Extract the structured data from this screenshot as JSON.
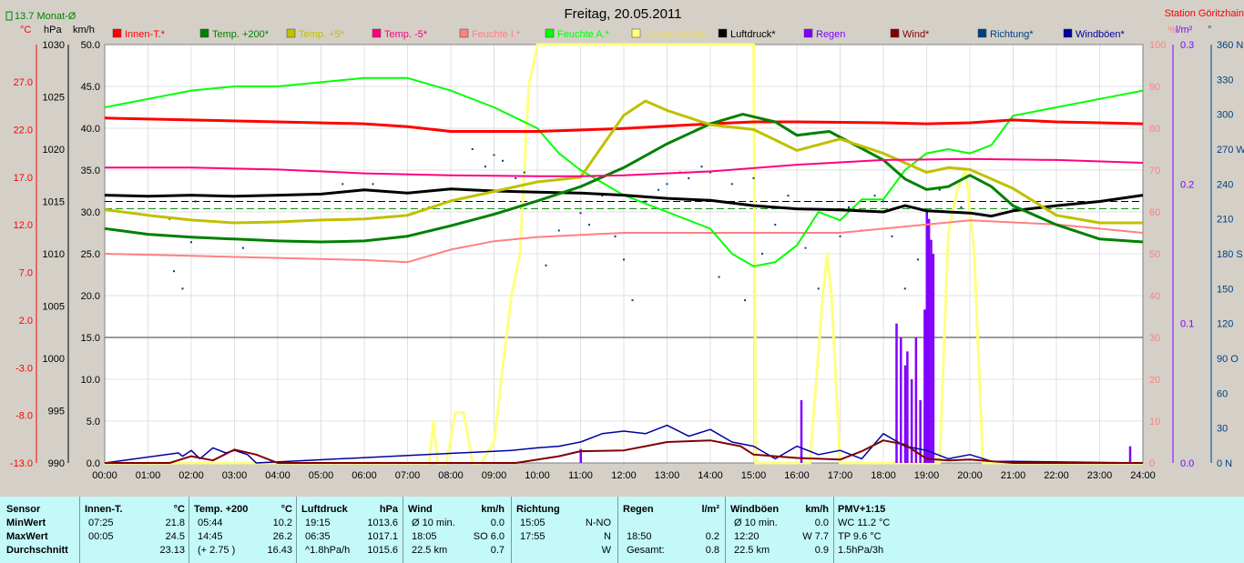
{
  "title": "Freitag, 20.05.2011",
  "station": "Station Göritzhain",
  "month_avg_label": "13.7 Monat-Ø",
  "units": {
    "temp": "°C",
    "pressure": "hPa",
    "wind": "km/h",
    "humidity": "%",
    "rain": "l/m²",
    "direction": "°"
  },
  "colors": {
    "innen": "#ff0000",
    "temp200": "#008000",
    "temp5": "#c0c000",
    "tempm5": "#ff0080",
    "feuchte_i": "#ff8080",
    "feuchte_a": "#00ff00",
    "sonne": "#ffff80",
    "luftdruck": "#000000",
    "regen": "#8000ff",
    "wind": "#800000",
    "richtung": "#004080",
    "windboen": "#0000a0"
  },
  "chart_data": {
    "type": "line",
    "x_label_times": [
      "00:00",
      "01:00",
      "02:00",
      "03:00",
      "04:00",
      "05:00",
      "06:00",
      "07:00",
      "08:00",
      "09:00",
      "10:00",
      "11:00",
      "12:00",
      "13:00",
      "14:00",
      "15:00",
      "16:00",
      "17:00",
      "18:00",
      "19:00",
      "20:00",
      "21:00",
      "22:00",
      "23:00",
      "24:00"
    ],
    "axes": {
      "temp_c": [
        "27.0",
        "22.0",
        "17.0",
        "12.0",
        "7.0",
        "2.0",
        "-3.0",
        "-8.0",
        "-13.0"
      ],
      "hpa": [
        "1030",
        "1025",
        "1020",
        "1015",
        "1010",
        "1005",
        "1000",
        "995",
        "990"
      ],
      "kmh": [
        "50.0",
        "45.0",
        "40.0",
        "35.0",
        "30.0",
        "25.0",
        "20.0",
        "15.0",
        "10.0",
        "5.0",
        "0.0"
      ],
      "percent": [
        "100",
        "90",
        "80",
        "70",
        "60",
        "50",
        "40",
        "30",
        "20",
        "10",
        "0"
      ],
      "rain": [
        "0.3",
        "0.2",
        "0.1",
        "0.0"
      ],
      "direction": [
        "360 N",
        "330",
        "300",
        "270 W",
        "240",
        "210",
        "180 S",
        "150",
        "120",
        "90 O",
        "60",
        "30",
        "0 N"
      ]
    },
    "legend": [
      {
        "key": "innen",
        "label": "Innen-T.*"
      },
      {
        "key": "temp200",
        "label": "Temp. +200*"
      },
      {
        "key": "temp5",
        "label": "Temp. +5*"
      },
      {
        "key": "tempm5",
        "label": "Temp. -5*"
      },
      {
        "key": "feuchte_i",
        "label": "Feuchte I.*"
      },
      {
        "key": "feuchte_a",
        "label": "Feuchte A.*"
      },
      {
        "key": "sonne",
        "label": "Sonnenschein"
      },
      {
        "key": "luftdruck",
        "label": "Luftdruck*"
      },
      {
        "key": "regen",
        "label": "Regen"
      },
      {
        "key": "wind",
        "label": "Wind*"
      },
      {
        "key": "richtung",
        "label": "Richtung*"
      },
      {
        "key": "windboen",
        "label": "Windböen*"
      }
    ],
    "series": [
      {
        "key": "innen",
        "axis": "temp",
        "hours": [
          0,
          2,
          4,
          6,
          7,
          8,
          10,
          12,
          14,
          15,
          16,
          18,
          19,
          20,
          21,
          22,
          23,
          24
        ],
        "values": [
          23.2,
          23.0,
          22.8,
          22.6,
          22.3,
          21.8,
          21.8,
          22.1,
          22.6,
          22.8,
          22.8,
          22.7,
          22.6,
          22.7,
          23.0,
          22.8,
          22.7,
          22.6
        ]
      },
      {
        "key": "temp200",
        "axis": "temp",
        "hours": [
          0,
          1,
          2,
          3,
          4,
          5,
          6,
          7,
          8,
          9,
          10,
          11,
          12,
          13,
          14,
          14.75,
          15.5,
          16,
          16.75,
          17.5,
          18,
          18.5,
          19,
          19.5,
          20,
          20.5,
          21,
          22,
          23,
          24
        ],
        "values": [
          11.6,
          11.0,
          10.7,
          10.5,
          10.3,
          10.2,
          10.3,
          10.8,
          11.9,
          13.1,
          14.5,
          16.0,
          18.0,
          20.5,
          22.6,
          23.6,
          22.8,
          21.4,
          21.8,
          20.0,
          18.8,
          16.8,
          15.7,
          16.0,
          17.2,
          16.0,
          14.0,
          12.0,
          10.5,
          10.2
        ]
      },
      {
        "key": "temp5",
        "axis": "temp",
        "hours": [
          0,
          1,
          2,
          3,
          4,
          5,
          6,
          7,
          8,
          9,
          10,
          11,
          12,
          12.5,
          13,
          14,
          15,
          16,
          17,
          18,
          19,
          19.5,
          20,
          21,
          22,
          23,
          24
        ],
        "values": [
          13.6,
          13.0,
          12.5,
          12.2,
          12.3,
          12.5,
          12.6,
          13.0,
          14.5,
          15.5,
          16.5,
          17.0,
          23.5,
          25.0,
          24.0,
          22.5,
          22.0,
          19.8,
          21.0,
          19.5,
          17.5,
          18.0,
          17.8,
          15.8,
          13.0,
          12.2,
          12.2
        ]
      },
      {
        "key": "tempm5",
        "axis": "temp",
        "hours": [
          0,
          2,
          4,
          6,
          8,
          10,
          11,
          12,
          14,
          16,
          18,
          20,
          22,
          24
        ],
        "values": [
          18.0,
          18.0,
          17.8,
          17.4,
          17.2,
          17.1,
          17.1,
          17.2,
          17.6,
          18.3,
          18.8,
          18.9,
          18.8,
          18.5
        ]
      }
    ],
    "humidity": [
      {
        "key": "feuchte_i",
        "hours": [
          0,
          2,
          4,
          6,
          7,
          8,
          9,
          10,
          12,
          15,
          17,
          18,
          20,
          22,
          24
        ],
        "values": [
          50,
          49.5,
          49,
          48.5,
          48,
          51,
          53,
          54,
          55,
          55,
          55,
          56,
          58,
          57,
          55
        ]
      },
      {
        "key": "feuchte_a",
        "hours": [
          0,
          1,
          2,
          3,
          4,
          5,
          6,
          7,
          8,
          9,
          10,
          10.5,
          11,
          12,
          13,
          14,
          14.5,
          15,
          15.5,
          16,
          16.5,
          17,
          17.5,
          18,
          18.5,
          19,
          19.5,
          20,
          20.5,
          21,
          22,
          23,
          24
        ],
        "values": [
          85,
          87,
          89,
          90,
          90,
          91,
          92,
          92,
          89,
          85,
          80,
          74,
          70,
          64,
          60,
          56,
          50,
          47,
          48,
          52,
          60,
          58,
          63,
          63,
          70,
          74,
          75,
          74,
          76,
          83,
          85,
          87,
          89
        ]
      }
    ],
    "pressure": {
      "hours": [
        0,
        1,
        2,
        3,
        4,
        5,
        6,
        7,
        8,
        9,
        10,
        11,
        12,
        13,
        14,
        15,
        16,
        17,
        18,
        18.5,
        19,
        20,
        20.5,
        21,
        22,
        23,
        24
      ],
      "values": [
        1015.6,
        1015.5,
        1015.6,
        1015.5,
        1015.6,
        1015.7,
        1016.1,
        1015.8,
        1016.2,
        1016.0,
        1015.9,
        1015.8,
        1015.6,
        1015.3,
        1015.1,
        1014.6,
        1014.3,
        1014.2,
        1014.0,
        1014.6,
        1014.1,
        1013.9,
        1013.6,
        1014.1,
        1014.6,
        1015.0,
        1015.6
      ]
    },
    "sunshine": {
      "hours": [
        0,
        7.5,
        7.6,
        7.7,
        7.9,
        8.1,
        8.3,
        8.5,
        8.7,
        9.0,
        9.4,
        9.6,
        9.8,
        10.0,
        10.1,
        15.0,
        15.05,
        15.5,
        16.3,
        16.6,
        16.7,
        16.8,
        17.0,
        17.2,
        17.3,
        19.3,
        19.5,
        19.7,
        19.9,
        20.1,
        20.3,
        24
      ],
      "values": [
        0,
        0,
        10,
        0,
        0,
        12,
        12,
        0,
        0,
        5,
        40,
        50,
        90,
        100,
        100,
        100,
        0,
        0,
        0,
        40,
        50,
        40,
        0,
        0,
        0,
        0,
        55,
        65,
        70,
        50,
        0,
        0
      ]
    },
    "wind": {
      "hours": [
        0,
        1.5,
        2.0,
        2.5,
        3.0,
        3.5,
        4.0,
        9.5,
        10.5,
        11.0,
        12.0,
        12.5,
        13.0,
        14.0,
        14.7,
        15.0,
        16.0,
        17.0,
        17.5,
        18.0,
        18.5,
        19.0,
        19.5,
        20.0,
        21.0,
        24.0
      ],
      "values": [
        0,
        0,
        0.8,
        0.3,
        1.6,
        1.0,
        0,
        0,
        0.8,
        1.4,
        1.5,
        2.0,
        2.5,
        2.7,
        2.0,
        1.0,
        0.6,
        0.4,
        1.4,
        2.7,
        2.2,
        0.5,
        0.3,
        0.4,
        0,
        0
      ]
    },
    "windboen": {
      "hours": [
        0,
        1.7,
        1.8,
        2.0,
        2.2,
        2.5,
        2.8,
        3.0,
        3.3,
        3.5,
        9.4,
        10.0,
        10.5,
        11.0,
        11.5,
        12.0,
        12.5,
        13.0,
        13.5,
        14.0,
        14.5,
        15.0,
        15.5,
        16.0,
        16.5,
        17.0,
        17.5,
        18.0,
        18.5,
        19.0,
        19.5,
        20.0,
        20.5,
        21.0,
        24.0
      ],
      "values": [
        0,
        1.2,
        0.8,
        1.5,
        0.5,
        1.8,
        1.2,
        1.5,
        1.0,
        0,
        1.5,
        1.8,
        2.0,
        2.5,
        3.5,
        3.8,
        3.5,
        4.5,
        3.2,
        4.0,
        2.5,
        2.0,
        0.5,
        2.0,
        1.0,
        1.5,
        0.5,
        3.5,
        2.0,
        1.5,
        0.5,
        1.0,
        0.2,
        0.2,
        0
      ]
    },
    "rain": {
      "hours": [
        11.0,
        16.1,
        18.3,
        18.4,
        18.5,
        18.55,
        18.65,
        18.75,
        18.85,
        18.95,
        19.0,
        19.05,
        19.1,
        19.15,
        23.7
      ],
      "values": [
        0.01,
        0.045,
        0.1,
        0.09,
        0.07,
        0.08,
        0.06,
        0.09,
        0.045,
        0.11,
        0.18,
        0.175,
        0.16,
        0.15,
        0.012
      ]
    },
    "direction_dots": {
      "hours": [
        1.5,
        1.6,
        1.8,
        2.0,
        2.1,
        2.6,
        3.2,
        5.5,
        6.2,
        7.5,
        8.5,
        8.8,
        9.0,
        9.2,
        9.5,
        9.7,
        10.0,
        10.2,
        10.5,
        11.0,
        11.2,
        11.5,
        11.8,
        12.0,
        12.2,
        12.5,
        12.8,
        13.0,
        13.3,
        13.5,
        13.8,
        14.0,
        14.2,
        14.5,
        14.8,
        15.0,
        15.2,
        15.5,
        15.8,
        16.2,
        16.5,
        17.0,
        17.2,
        17.5,
        17.8,
        18.0,
        18.2,
        18.5,
        18.8,
        19.0,
        19.3,
        19.6,
        19.8
      ],
      "values": [
        210,
        165,
        150,
        190,
        225,
        230,
        185,
        240,
        240,
        220,
        270,
        255,
        265,
        260,
        245,
        250,
        225,
        170,
        200,
        215,
        205,
        230,
        195,
        175,
        140,
        225,
        235,
        240,
        250,
        245,
        255,
        250,
        160,
        240,
        140,
        245,
        180,
        205,
        230,
        185,
        150,
        195,
        220,
        200,
        230,
        225,
        195,
        150,
        175,
        215,
        235,
        240,
        220
      ]
    },
    "reference_lines": {
      "dashed_black_hpa": 1015.0,
      "dashed_green_temp": 13.7,
      "solid_grey_kmh": 15.0
    }
  },
  "stats": {
    "sensor": {
      "title": "Sensor",
      "rows": [
        "MinWert",
        "MaxWert",
        "Durchschnitt"
      ]
    },
    "innen": {
      "title": "Innen-T.",
      "unit": "°C",
      "rows": [
        [
          "07:25",
          "21.8"
        ],
        [
          "00:05",
          "24.5"
        ],
        [
          "",
          "23.13"
        ]
      ]
    },
    "temp200": {
      "title": "Temp. +200",
      "unit": "°C",
      "rows": [
        [
          "05:44",
          "10.2"
        ],
        [
          "14:45",
          "26.2"
        ],
        [
          "(+ 2.75 )",
          "16.43"
        ]
      ]
    },
    "luftdruck": {
      "title": "Luftdruck",
      "unit": "hPa",
      "rows": [
        [
          "19:15",
          "1013.6"
        ],
        [
          "06:35",
          "1017.1"
        ],
        [
          "^1.8hPa/h",
          "1015.6"
        ]
      ]
    },
    "wind": {
      "title": "Wind",
      "unit": "km/h",
      "rows": [
        [
          "Ø 10 min.",
          "0.0"
        ],
        [
          "18:05",
          "SO 6.0"
        ],
        [
          "22.5 km",
          "0.7"
        ]
      ]
    },
    "richtung": {
      "title": "Richtung",
      "unit": "",
      "rows": [
        [
          "15:05",
          "N-NO"
        ],
        [
          "17:55",
          "N"
        ],
        [
          "",
          "W"
        ]
      ]
    },
    "regen": {
      "title": "Regen",
      "unit": "l/m²",
      "rows": [
        [
          "",
          ""
        ],
        [
          "18:50",
          "0.2"
        ],
        [
          "Gesamt:",
          "0.8"
        ]
      ]
    },
    "windboen": {
      "title": "Windböen",
      "unit": "km/h",
      "rows": [
        [
          "Ø 10 min.",
          "0.0"
        ],
        [
          "12:20",
          "W 7.7"
        ],
        [
          "22.5 km",
          "0.9"
        ]
      ]
    },
    "pmv": {
      "title": "PMV+1:15",
      "rows": [
        "WC 11.2 °C",
        "TP 9.6 °C",
        "1.5hPa/3h"
      ]
    }
  }
}
